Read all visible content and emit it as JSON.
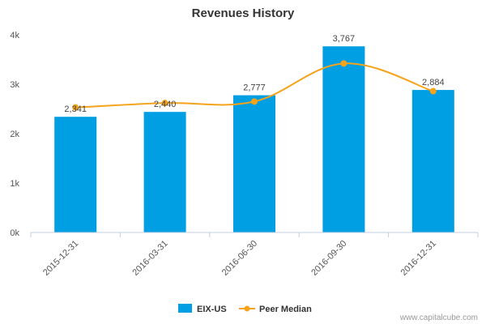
{
  "chart_data": {
    "type": "bar",
    "title": "Revenues History",
    "categories": [
      "2015-12-31",
      "2016-03-31",
      "2016-06-30",
      "2016-09-30",
      "2016-12-31"
    ],
    "series": [
      {
        "name": "EIX-US",
        "type": "bar",
        "color": "#009ee3",
        "values": [
          2341,
          2440,
          2777,
          3767,
          2884
        ],
        "labels": [
          "2,341",
          "2,440",
          "2,777",
          "3,767",
          "2,884"
        ]
      },
      {
        "name": "Peer Median",
        "type": "line",
        "color": "#f5a31a",
        "values": [
          2530,
          2620,
          2650,
          3420,
          2860
        ]
      }
    ],
    "ylim": [
      0,
      4000
    ],
    "yticks": [
      0,
      1000,
      2000,
      3000,
      4000
    ],
    "ytick_labels": [
      "0k",
      "1k",
      "2k",
      "3k",
      "4k"
    ],
    "grid": false,
    "legend_position": "bottom"
  },
  "footer": {
    "credit": "www.capitalcube.com"
  }
}
